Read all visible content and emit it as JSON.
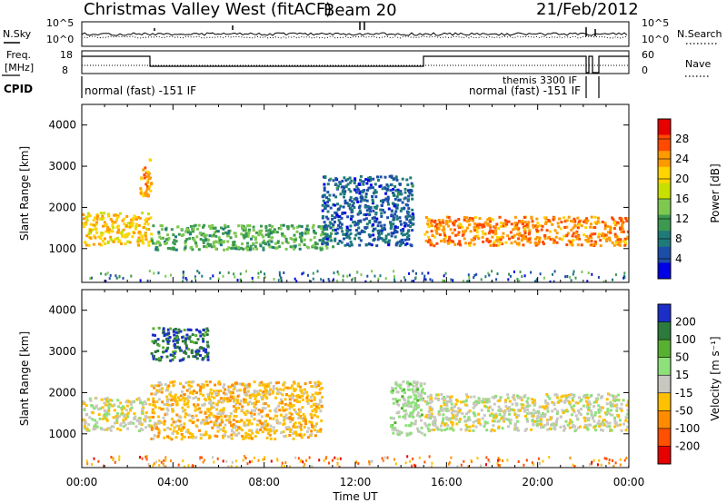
{
  "header": {
    "station": "Christmas Valley West (fitACF)",
    "beam": "Beam 20",
    "date": "21/Feb/2012"
  },
  "noise_panel": {
    "left_label": "N.Sky",
    "left_ticks": [
      "10^5",
      "10^0"
    ],
    "right_ticks": [
      "10^5",
      "10^0"
    ],
    "right_label": "N.Search"
  },
  "freq_panel": {
    "left_label_1": "Freq.",
    "left_label_2": "[MHz]",
    "left_ticks": [
      "18",
      "8"
    ],
    "right_ticks": [
      "60",
      "0"
    ],
    "right_label": "Nave"
  },
  "cpid": {
    "label": "CPID",
    "mode_1": "normal (fast) -151 IF",
    "mode_2": "themis 3300 IF",
    "mode_3": "normal (fast) -151 IF"
  },
  "x_ticks": [
    "00:00",
    "04:00",
    "08:00",
    "12:00",
    "16:00",
    "20:00",
    "00:00"
  ],
  "x_label": "Time UT",
  "y_ticks": [
    "1000",
    "2000",
    "3000",
    "4000"
  ],
  "y_label": "Slant Range [km]",
  "power_colorbar": {
    "label": "Power [dB]",
    "ticks": [
      "28",
      "24",
      "20",
      "16",
      "12",
      "8",
      "4"
    ],
    "colors": [
      "#e60000",
      "#ff4a00",
      "#ff9a00",
      "#ffd400",
      "#c8e000",
      "#7ec850",
      "#3c9a50",
      "#1f7a7a",
      "#1c4ea8",
      "#0000e6"
    ]
  },
  "velocity_colorbar": {
    "label": "Velocity [m s⁻¹]",
    "ticks": [
      "200",
      "100",
      "50",
      "15",
      "-15",
      "-50",
      "-100",
      "-200"
    ],
    "colors": [
      "#1c2ec8",
      "#2c7a3c",
      "#58b030",
      "#8ee07a",
      "#c8c8c0",
      "#ffc000",
      "#ff8c00",
      "#ff5000",
      "#e60000"
    ]
  },
  "chart_data": {
    "type": "heatmap",
    "title": "Christmas Valley West (fitACF) Beam 20 21/Feb/2012",
    "xlabel": "Time UT",
    "ylabel": "Slant Range [km]",
    "xlim": [
      "00:00",
      "24:00"
    ],
    "ylim": [
      180,
      4500
    ],
    "panels": [
      {
        "name": "Power",
        "unit": "dB",
        "colorbar_range": [
          0,
          32
        ],
        "features": [
          {
            "time_start": "00:00",
            "time_end": "03:00",
            "range_start": 1100,
            "range_end": 1900,
            "value": 22
          },
          {
            "time_start": "02:30",
            "time_end": "03:00",
            "range_start": 2300,
            "range_end": 3200,
            "value": 24
          },
          {
            "time_start": "03:00",
            "time_end": "11:00",
            "range_start": 1000,
            "range_end": 1600,
            "value": 12
          },
          {
            "time_start": "15:00",
            "time_end": "24:00",
            "range_start": 1100,
            "range_end": 1800,
            "value": 26
          },
          {
            "time_start": "10:30",
            "time_end": "14:30",
            "range_start": 1100,
            "range_end": 2800,
            "value": 5
          }
        ]
      },
      {
        "name": "Velocity",
        "unit": "m s^-1",
        "colorbar_range": [
          -250,
          250
        ],
        "features": [
          {
            "time_start": "00:00",
            "time_end": "03:00",
            "range_start": 1100,
            "range_end": 1900,
            "value": 0
          },
          {
            "time_start": "03:00",
            "time_end": "10:30",
            "range_start": 900,
            "range_end": 2300,
            "value": -60
          },
          {
            "time_start": "03:00",
            "time_end": "05:30",
            "range_start": 2800,
            "range_end": 3600,
            "value": 200
          },
          {
            "time_start": "15:00",
            "time_end": "24:00",
            "range_start": 1100,
            "range_end": 2000,
            "value": 0
          },
          {
            "time_start": "13:30",
            "time_end": "15:00",
            "range_start": 1000,
            "range_end": 2300,
            "value": 40
          }
        ]
      }
    ]
  }
}
